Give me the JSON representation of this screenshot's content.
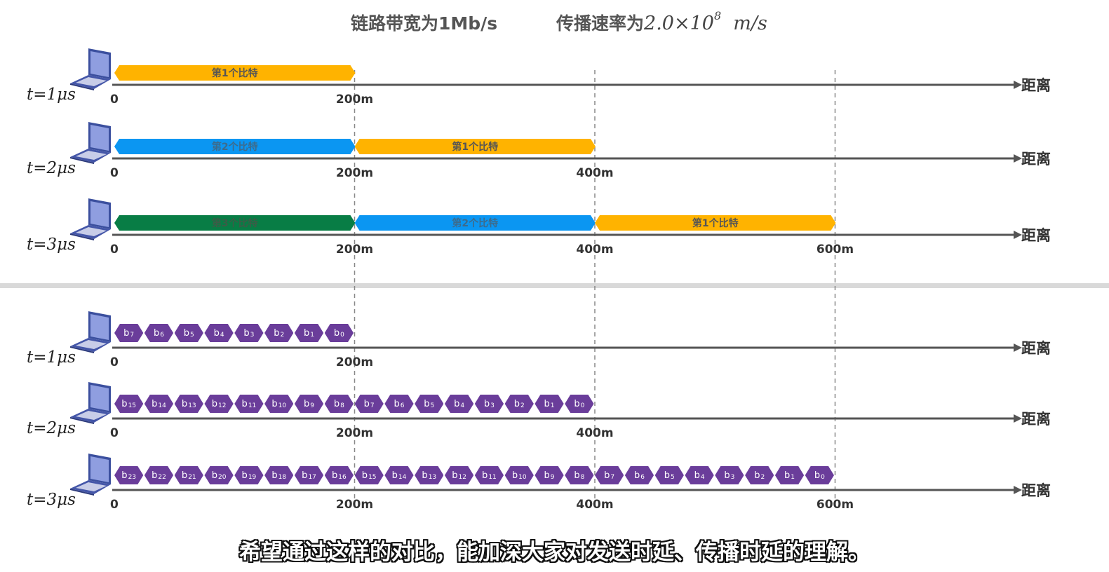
{
  "header": {
    "bandwidth_text": "链路带宽为1Mb/s",
    "speed_prefix": "传播速率为",
    "speed_mantissa": "2.0×10",
    "speed_exponent": "8",
    "speed_unit": "m/s"
  },
  "axis_label": "距离",
  "colors": {
    "orange": "#FFB300",
    "blue": "#0B96F2",
    "green": "#087D45",
    "purple": "#6A3D9A",
    "axis": "#555555",
    "divider": "#D9D9D9"
  },
  "top_rows": [
    {
      "time_label": "t=1μs",
      "ticks": [
        "0",
        "200m"
      ],
      "bits": [
        {
          "label": "第1个比特",
          "color": "orange"
        }
      ]
    },
    {
      "time_label": "t=2μs",
      "ticks": [
        "0",
        "200m",
        "400m"
      ],
      "bits": [
        {
          "label": "第2个比特",
          "color": "blue"
        },
        {
          "label": "第1个比特",
          "color": "orange"
        }
      ]
    },
    {
      "time_label": "t=3μs",
      "ticks": [
        "0",
        "200m",
        "400m",
        "600m"
      ],
      "bits": [
        {
          "label": "第3个比特",
          "color": "green"
        },
        {
          "label": "第2个比特",
          "color": "blue"
        },
        {
          "label": "第1个比特",
          "color": "orange"
        }
      ]
    }
  ],
  "bottom_rows": [
    {
      "time_label": "t=1μs",
      "ticks": [
        "0",
        "200m"
      ],
      "bit_count": 8
    },
    {
      "time_label": "t=2μs",
      "ticks": [
        "0",
        "200m",
        "400m"
      ],
      "bit_count": 16
    },
    {
      "time_label": "t=3μs",
      "ticks": [
        "0",
        "200m",
        "400m",
        "600m"
      ],
      "bit_count": 24
    }
  ],
  "bit_prefix": "b",
  "subtitle": "希望通过这样的对比，能加深大家对发送时延、传播时延的理解。"
}
